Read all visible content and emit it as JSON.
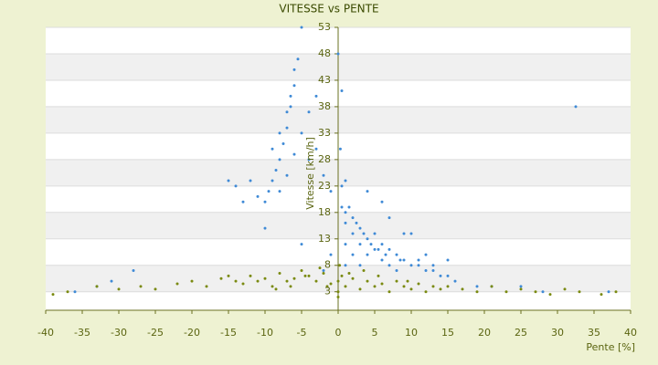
{
  "chart_data": {
    "type": "scatter",
    "title": "VITESSE vs PENTE",
    "x_label": "Pente [%]",
    "y_label": "Vitesse [km/h]",
    "xlim": [
      -40,
      40
    ],
    "xticks": [
      -40,
      -35,
      -30,
      -25,
      -20,
      -15,
      -10,
      -5,
      0,
      5,
      10,
      15,
      20,
      25,
      30,
      35,
      40
    ],
    "ylim": [
      -0.5,
      53
    ],
    "yticks": [
      3,
      8,
      13,
      18,
      23,
      28,
      33,
      38,
      43,
      48,
      53
    ],
    "grid": true,
    "series": [
      {
        "color": "#3f8ad6",
        "x": [
          -10,
          -9.5,
          -9,
          -8.5,
          -8,
          -7.5,
          -7,
          -6.5,
          -6,
          -5.5,
          -5,
          -8,
          -7,
          -6,
          -5,
          -4,
          -3,
          -9,
          -8,
          -7,
          -6.5,
          -6,
          -14,
          -12,
          -11,
          -10,
          -13,
          -15,
          -3,
          -2,
          -1,
          -4,
          0.5,
          1,
          1,
          2,
          2,
          3,
          3,
          4,
          4,
          5,
          5,
          6,
          6,
          7,
          7,
          8,
          8,
          9,
          10,
          11,
          12,
          13,
          14,
          15,
          1,
          2,
          3,
          1,
          0.5,
          1,
          4,
          6,
          7,
          9,
          10,
          12,
          15,
          16,
          19,
          21,
          25,
          28,
          37,
          32.5,
          -31,
          -28,
          -33,
          -36,
          -5,
          -2,
          -1,
          0.3,
          0.5,
          0,
          1.5,
          2.5,
          3.5,
          4.5,
          5.5,
          6.5,
          8.5,
          11,
          13
        ],
        "values": [
          20,
          22,
          24,
          26,
          28,
          31,
          34,
          38,
          42,
          47,
          53,
          22,
          25,
          29,
          33,
          37,
          40,
          30,
          33,
          37,
          40,
          45,
          23,
          24,
          21,
          15,
          20,
          24,
          30,
          25,
          22,
          28,
          19,
          18,
          16,
          17,
          14,
          15,
          12,
          13,
          10,
          14,
          11,
          12,
          9,
          11,
          8,
          10,
          7,
          9,
          8,
          8,
          7,
          7,
          6,
          6,
          12,
          10,
          8,
          8,
          23,
          24,
          22,
          20,
          17,
          14,
          14,
          10,
          9,
          5,
          4,
          4,
          4,
          3,
          3,
          38,
          5,
          7,
          4,
          3,
          12,
          7,
          10,
          30,
          41,
          48,
          19,
          16,
          14,
          12,
          11,
          10,
          9,
          9,
          8
        ]
      },
      {
        "color": "#7a8a10",
        "x": [
          -39,
          -37,
          -33,
          -30,
          -27,
          -25,
          -22,
          -20,
          -18,
          -16,
          -15,
          -14,
          -13,
          -12,
          -11,
          -10,
          -9,
          -8,
          -7,
          -6,
          -5,
          -4,
          -3,
          -2,
          -1,
          0,
          0.5,
          1,
          2,
          3,
          4,
          5,
          6,
          7,
          8,
          9,
          10,
          11,
          12,
          13,
          14,
          15,
          17,
          19,
          21,
          23,
          25,
          27,
          29,
          31,
          33,
          36,
          38,
          -8.5,
          -6.5,
          -4.5,
          -2.5,
          -1.5,
          1.5,
          3.5,
          5.5,
          9.5,
          0,
          0,
          0.2
        ],
        "values": [
          2.5,
          3,
          4,
          3.5,
          4,
          3.5,
          4.5,
          5,
          4,
          5.5,
          6,
          5,
          4.5,
          6,
          5,
          5.5,
          4,
          6.5,
          5,
          5.5,
          7,
          6,
          5,
          6.5,
          4.5,
          5,
          6,
          4,
          5.5,
          3.5,
          5,
          4,
          4.5,
          3,
          5,
          4,
          3.5,
          4.5,
          3,
          4,
          3.5,
          4,
          3.5,
          3,
          4,
          3,
          3.5,
          3,
          2.5,
          3.5,
          3,
          2.5,
          3,
          3.5,
          4,
          6,
          7.5,
          4,
          6.5,
          7,
          6,
          5,
          2,
          3,
          8
        ]
      }
    ]
  }
}
